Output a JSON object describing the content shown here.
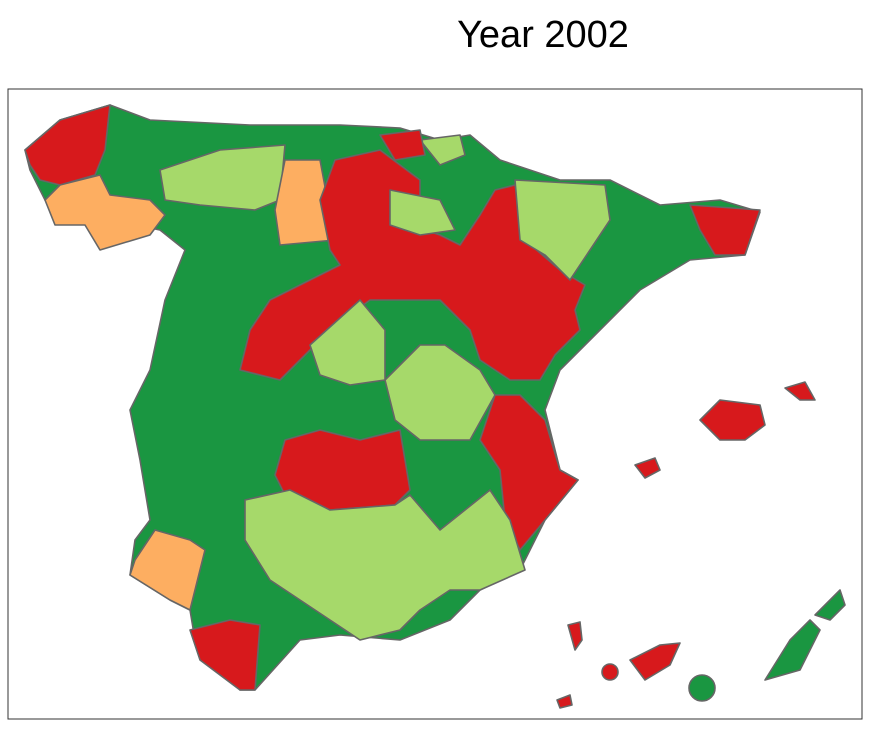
{
  "title": "Year 2002"
}
